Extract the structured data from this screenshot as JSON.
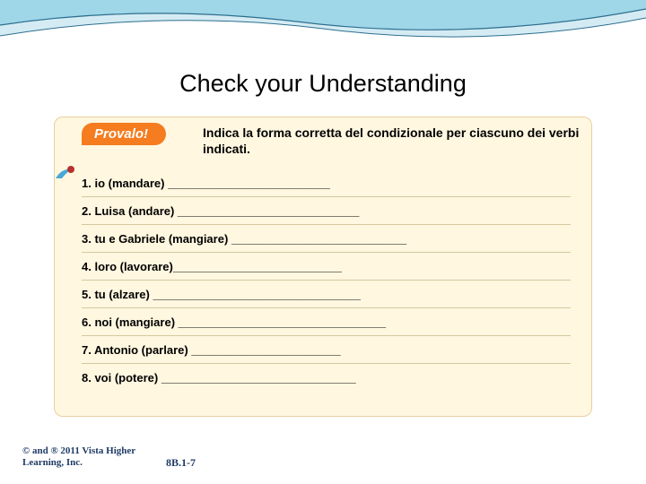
{
  "wave": {
    "fill_light": "#d5ebf3",
    "fill_mid": "#9fd6e8",
    "stroke_dark": "#2c6f8f"
  },
  "title": "Check your Understanding",
  "box": {
    "background": "#fff7e0",
    "border": "#e9cf9f"
  },
  "provalo": {
    "label": "Provalo!",
    "background": "#f57c1f",
    "text_color": "#ffffff"
  },
  "instruction": "Indica la forma corretta del condizionale per ciascuno dei verbi indicati.",
  "bullet": {
    "swoosh_color": "#4aa8d8",
    "ball_color": "#b9312c"
  },
  "exercises": [
    "1. io (mandare) _________________________",
    "2. Luisa (andare) ____________________________",
    "3. tu e Gabriele (mangiare) ___________________________",
    "4. loro (lavorare)__________________________",
    "5. tu (alzare) ________________________________",
    "6. noi (mangiare) ________________________________",
    "7. Antonio (parlare) _______________________",
    "8. voi (potere) ______________________________"
  ],
  "copyright": "© and ® 2011 Vista Higher\nLearning, Inc.",
  "page_ref": "8B.1-7",
  "footer_color": "#1f3b66"
}
